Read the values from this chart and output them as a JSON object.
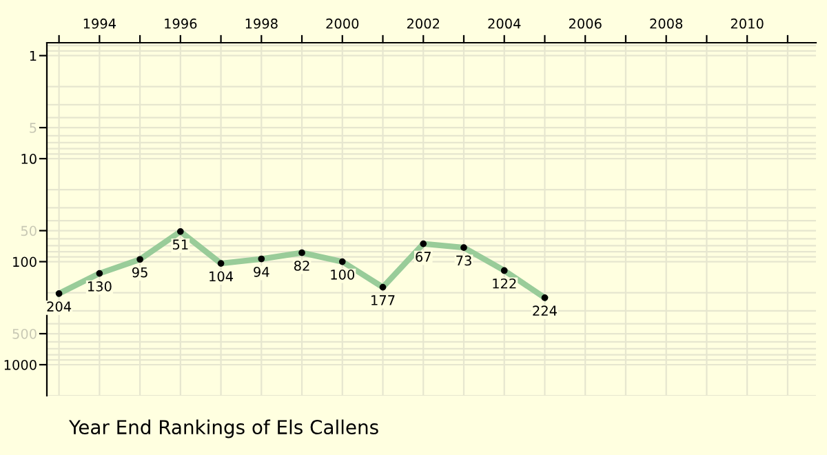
{
  "chart_data": {
    "type": "line",
    "title": "Year End Rankings of Els Callens",
    "x": [
      1993,
      1994,
      1995,
      1996,
      1997,
      1998,
      1999,
      2000,
      2001,
      2002,
      2003,
      2004,
      2005
    ],
    "series": [
      {
        "color": "#99cc99",
        "values": [
          204,
          130,
          95,
          51,
          104,
          94,
          82,
          100,
          177,
          67,
          73,
          122,
          224
        ]
      }
    ],
    "log": true,
    "ylim": [
      2000,
      0.75
    ],
    "yticks": [
      1,
      5,
      10,
      50,
      100,
      500,
      1000
    ],
    "xlim": [
      1992.7,
      2011.7
    ],
    "xticks": [
      {
        "value": 1993,
        "label": null
      },
      1994,
      {
        "value": 1995,
        "label": null
      },
      1996,
      {
        "value": 1997,
        "label": null
      },
      1998,
      {
        "value": 1999,
        "label": null
      },
      2000,
      {
        "value": 2001,
        "label": null
      },
      2002,
      {
        "value": 2003,
        "label": null
      },
      2004,
      {
        "value": 2005,
        "label": null
      },
      2006,
      {
        "value": 2007,
        "label": null
      },
      2008,
      {
        "value": 2009,
        "label": null
      },
      2010,
      {
        "value": 2011,
        "label": null
      }
    ],
    "grid": true,
    "marker": "circle",
    "line_style": "solid",
    "data_labels": true,
    "legend": false
  }
}
